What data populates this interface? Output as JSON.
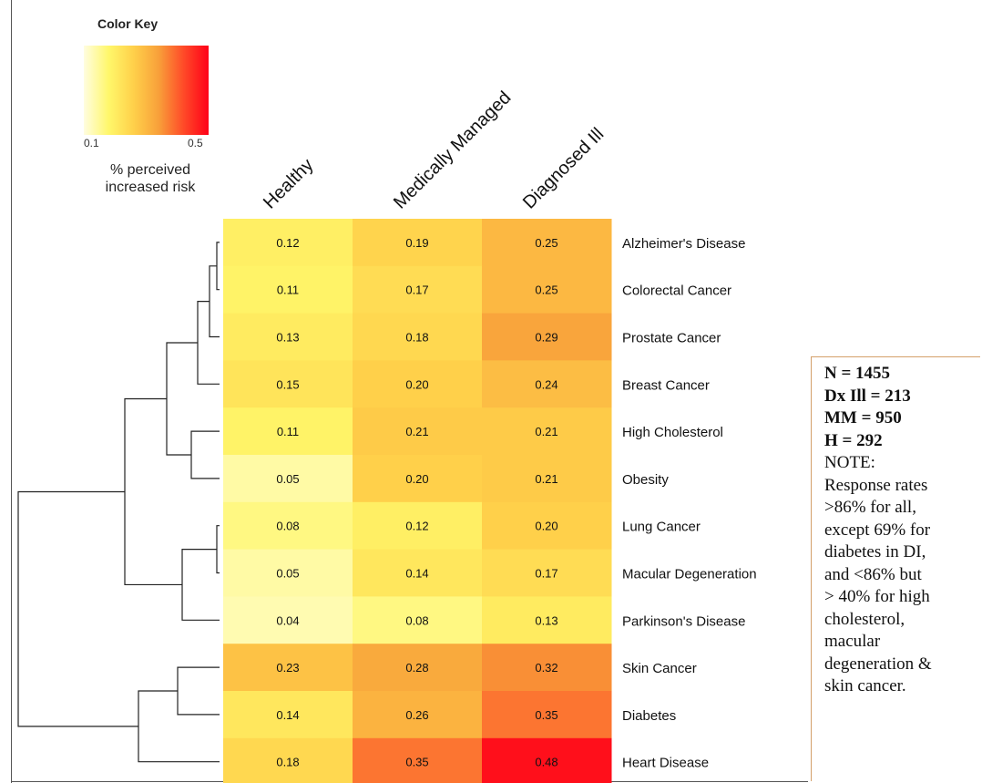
{
  "color_key": {
    "title": "Color Key",
    "min_label": "0.1",
    "max_label": "0.5",
    "label_lines": [
      "% perceived",
      "increased risk"
    ],
    "colors": [
      "#fffde0",
      "#fff76a",
      "#ffd04a",
      "#f8a03a",
      "#ff4a28",
      "#ff0018"
    ]
  },
  "note": {
    "bold_lines": [
      "N = 1455",
      "Dx Ill = 213",
      "MM = 950",
      "H = 292"
    ],
    "lines": [
      "NOTE:",
      "Response rates",
      ">86% for all,",
      "except 69% for",
      "diabetes in DI,",
      "and <86% but",
      "> 40% for high",
      "cholesterol,",
      "macular",
      "degeneration &",
      "skin cancer."
    ]
  },
  "chart_data": {
    "type": "heatmap",
    "columns": [
      "Healthy",
      "Medically Managed",
      "Diagnosed Ill"
    ],
    "rows": [
      "Alzheimer's Disease",
      "Colorectal Cancer",
      "Prostate Cancer",
      "Breast Cancer",
      "High Cholesterol",
      "Obesity",
      "Lung Cancer",
      "Macular Degeneration",
      "Parkinson's Disease",
      "Skin Cancer",
      "Diabetes",
      "Heart Disease"
    ],
    "values": [
      [
        "0.12",
        "0.19",
        "0.25"
      ],
      [
        "0.11",
        "0.17",
        "0.25"
      ],
      [
        "0.13",
        "0.18",
        "0.29"
      ],
      [
        "0.15",
        "0.20",
        "0.24"
      ],
      [
        "0.11",
        "0.21",
        "0.21"
      ],
      [
        "0.05",
        "0.20",
        "0.21"
      ],
      [
        "0.08",
        "0.12",
        "0.20"
      ],
      [
        "0.05",
        "0.14",
        "0.17"
      ],
      [
        "0.04",
        "0.08",
        "0.13"
      ],
      [
        "0.23",
        "0.28",
        "0.32"
      ],
      [
        "0.14",
        "0.26",
        "0.35"
      ],
      [
        "0.18",
        "0.35",
        "0.48"
      ]
    ],
    "color_scale": {
      "min": 0.1,
      "max": 0.5
    },
    "dendrogram": "row"
  }
}
